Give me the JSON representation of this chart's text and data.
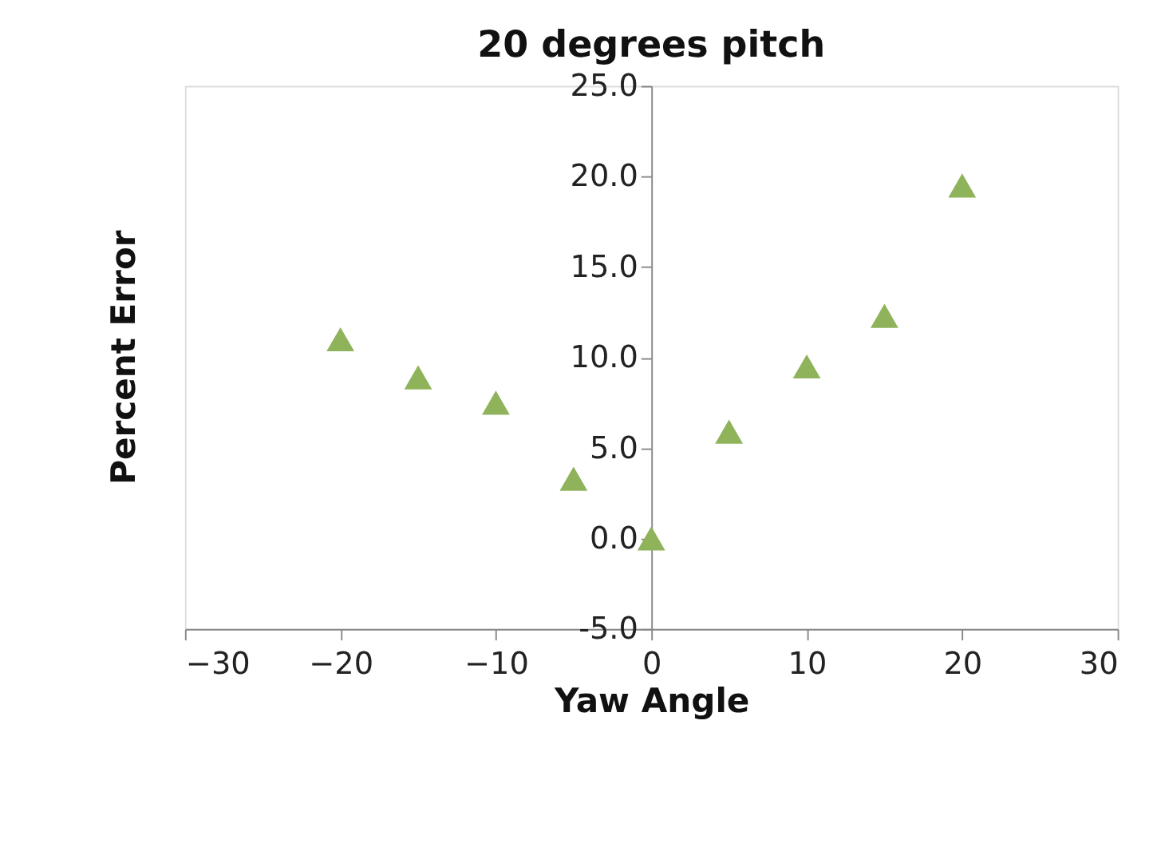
{
  "chart_data": {
    "type": "scatter",
    "title": "20 degrees pitch",
    "xlabel": "Yaw Angle",
    "ylabel": "Percent Error",
    "x": [
      -20,
      -15,
      -10,
      -5,
      0,
      5,
      10,
      15,
      20
    ],
    "series": [
      {
        "color": "#8fb35a",
        "values": [
          11.0,
          8.9,
          7.5,
          3.3,
          0.0,
          5.9,
          9.5,
          12.3,
          19.5
        ]
      }
    ],
    "xlim": [
      -30,
      30
    ],
    "xticks": [
      -30,
      -20,
      -10,
      0,
      10,
      20,
      30
    ],
    "ylim": [
      -5,
      25
    ],
    "yticks": [
      {
        "value": -5,
        "label": "-5.0"
      },
      {
        "value": 0,
        "label": "0.0"
      },
      {
        "value": 5,
        "label": "5.0"
      },
      {
        "value": 10,
        "label": "10.0"
      },
      {
        "value": 15,
        "label": "15.0"
      },
      {
        "value": 20,
        "label": "20.0"
      },
      {
        "value": 25,
        "label": "25.0"
      }
    ],
    "marker": "triangle",
    "grid": false,
    "legend": false
  }
}
